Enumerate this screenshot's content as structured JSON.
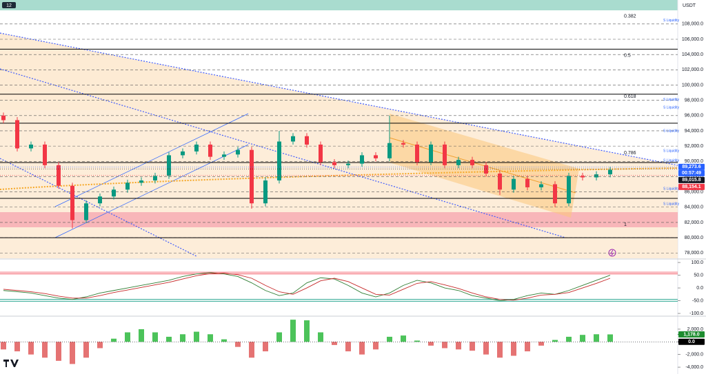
{
  "toolbar": {
    "interval": "12"
  },
  "currency": "USDT",
  "chart_data": [
    {
      "type": "candlestick",
      "open": [
        96000,
        95400,
        91700,
        92200,
        89500,
        86800,
        82300,
        84500,
        85400,
        86300,
        87200,
        87500,
        88100,
        90800,
        91300,
        92200,
        90600,
        90900,
        91500,
        84500,
        87500,
        92600,
        93300,
        92200,
        89900,
        89500,
        89700,
        90800,
        90400,
        92400,
        92200,
        89900,
        92200,
        89500,
        90200,
        89500,
        88400,
        86300,
        87700,
        86600,
        87000,
        84500,
        88100,
        87900,
        88300
      ],
      "high": [
        96400,
        95800,
        92600,
        92600,
        89900,
        87200,
        84900,
        85800,
        86700,
        87600,
        87900,
        88500,
        91200,
        91700,
        92600,
        92600,
        91300,
        91900,
        91900,
        87900,
        94000,
        93700,
        93700,
        92600,
        90300,
        90100,
        91200,
        91200,
        96000,
        92800,
        92600,
        92600,
        92600,
        90600,
        90600,
        89900,
        88800,
        88100,
        88100,
        87400,
        87400,
        88500,
        88500,
        88700,
        89300
      ],
      "low": [
        95000,
        91300,
        91300,
        89100,
        86400,
        81200,
        81900,
        84100,
        85000,
        85900,
        86800,
        87100,
        87700,
        90400,
        90900,
        90200,
        90200,
        90500,
        83800,
        84100,
        87100,
        92200,
        91800,
        89500,
        89100,
        89100,
        89300,
        90000,
        90000,
        91800,
        89500,
        89500,
        89100,
        89100,
        89100,
        88000,
        85600,
        85900,
        86200,
        86200,
        84000,
        84100,
        87500,
        87500,
        87900
      ],
      "close": [
        95400,
        91700,
        92200,
        89500,
        86800,
        82300,
        84500,
        85400,
        86300,
        87200,
        87500,
        88100,
        90800,
        91300,
        92200,
        90600,
        90900,
        91500,
        84500,
        87500,
        92600,
        93300,
        92200,
        89900,
        89500,
        89700,
        90800,
        90400,
        92400,
        92200,
        89900,
        92200,
        89500,
        90200,
        89500,
        88400,
        86300,
        87700,
        86600,
        87000,
        84500,
        88100,
        87900,
        88300,
        88900
      ],
      "up_color": "#089981",
      "down_color": "#f23645",
      "ylim": [
        77300,
        109700
      ],
      "yticks": [
        {
          "value": 78000,
          "label": "78,000.0"
        },
        {
          "value": 80000,
          "label": "80,000.0"
        },
        {
          "value": 82000,
          "label": "82,000.0"
        },
        {
          "value": 84000,
          "label": "84,000.0"
        },
        {
          "value": 86000,
          "label": "86,000.0"
        },
        {
          "value": 88000,
          "label": "88,000.0"
        },
        {
          "value": 90000,
          "label": "90,000.0"
        },
        {
          "value": 92000,
          "label": "92,000.0"
        },
        {
          "value": 94000,
          "label": "94,000.0"
        },
        {
          "value": 96000,
          "label": "96,000.0"
        },
        {
          "value": 98000,
          "label": "98,000.0"
        },
        {
          "value": 100000,
          "label": "100,000.0"
        },
        {
          "value": 102000,
          "label": "102,000.0"
        },
        {
          "value": 104000,
          "label": "104,000.0"
        },
        {
          "value": 106000,
          "label": "106,000.0"
        },
        {
          "value": 108000,
          "label": "108,000.0"
        }
      ],
      "grid": true,
      "levels": [
        104700,
        98800,
        95000,
        89850,
        85150,
        80000
      ],
      "fib_levels": [
        {
          "label": "0.382",
          "value": 109000
        },
        {
          "label": "0.5",
          "value": 103850
        },
        {
          "label": "0.618",
          "value": 98500
        },
        {
          "label": "0.786",
          "value": 91100
        },
        {
          "label": "1",
          "value": 81700
        }
      ],
      "liquidity": [
        {
          "label": "S Liquidity",
          "value": 108450
        },
        {
          "label": "S Liquidity",
          "value": 98070
        },
        {
          "label": "S Liquidity",
          "value": 97070
        },
        {
          "label": "S Liquidity",
          "value": 94000
        },
        {
          "label": "S Liquidity",
          "value": 91380
        },
        {
          "label": "S Liquidity",
          "value": 90120
        },
        {
          "label": "S Liquidity",
          "value": 86410
        },
        {
          "label": "S Liquidity",
          "value": 84430
        }
      ],
      "price_tags": [
        {
          "value": 89273.6,
          "label": "89,273.6",
          "color": "#2962ff"
        },
        {
          "value": 89015.8,
          "label": "89,015.8",
          "color": "#131722"
        },
        {
          "value": 88154.1,
          "label": "88,154.1",
          "color": "#f23645"
        }
      ],
      "countdown": "00:57:49"
    },
    {
      "type": "line",
      "series": [
        {
          "color": "#2e7d32",
          "values": [
            -10,
            -15,
            -20,
            -30,
            -40,
            -45,
            -35,
            -20,
            -10,
            0,
            10,
            20,
            30,
            45,
            55,
            60,
            55,
            45,
            20,
            -10,
            -30,
            -20,
            20,
            40,
            35,
            10,
            -20,
            -35,
            -20,
            10,
            30,
            20,
            0,
            -10,
            -30,
            -40,
            -50,
            -45,
            -30,
            -20,
            -25,
            -10,
            10,
            30,
            50
          ]
        },
        {
          "color": "#c62828",
          "values": [
            -5,
            -10,
            -15,
            -22,
            -32,
            -40,
            -40,
            -30,
            -18,
            -8,
            2,
            12,
            22,
            35,
            48,
            56,
            58,
            52,
            38,
            10,
            -15,
            -25,
            0,
            28,
            38,
            25,
            0,
            -25,
            -28,
            -5,
            18,
            25,
            12,
            -2,
            -20,
            -35,
            -45,
            -48,
            -40,
            -28,
            -25,
            -18,
            0,
            18,
            38
          ]
        }
      ],
      "levels": [
        {
          "value": 62,
          "color": "#f23645"
        },
        {
          "value": 55,
          "color": "#f23645"
        },
        {
          "value": -45,
          "color": "#089981"
        },
        {
          "value": -52,
          "color": "#089981"
        }
      ],
      "ylim": [
        -108,
        111
      ],
      "yticks": [
        {
          "value": 100,
          "label": "100.0"
        },
        {
          "value": 50,
          "label": "50.0"
        },
        {
          "value": 0,
          "label": "0.0"
        },
        {
          "value": -50,
          "label": "-50.0"
        },
        {
          "value": -100,
          "label": "-100.0"
        }
      ]
    },
    {
      "type": "bar",
      "values": [
        -1200,
        -1500,
        -2000,
        -2500,
        -3000,
        -3500,
        -2500,
        -1000,
        500,
        1500,
        2000,
        1500,
        800,
        1200,
        1600,
        1200,
        400,
        -800,
        -2500,
        -1500,
        1500,
        3500,
        3400,
        1500,
        -500,
        -1500,
        -2000,
        -1200,
        800,
        1000,
        200,
        -600,
        -1000,
        -1200,
        -1400,
        -2000,
        -2500,
        -2200,
        -1500,
        -600,
        300,
        800,
        1100,
        1200,
        1178
      ],
      "pos_color": "#4cc35a",
      "neg_color": "#e57373",
      "ylim": [
        -5080,
        3950
      ],
      "yticks": [
        {
          "value": 2000,
          "label": "2,000.0"
        },
        {
          "value": -2000,
          "label": "-2,000.0"
        },
        {
          "value": -4000,
          "label": "-4,000.0"
        }
      ],
      "tags": [
        {
          "value": 1178,
          "label": "1,178.0",
          "color": "#1e8c2f"
        },
        {
          "value": 0,
          "label": "0.0",
          "color": "#000000"
        }
      ]
    }
  ]
}
